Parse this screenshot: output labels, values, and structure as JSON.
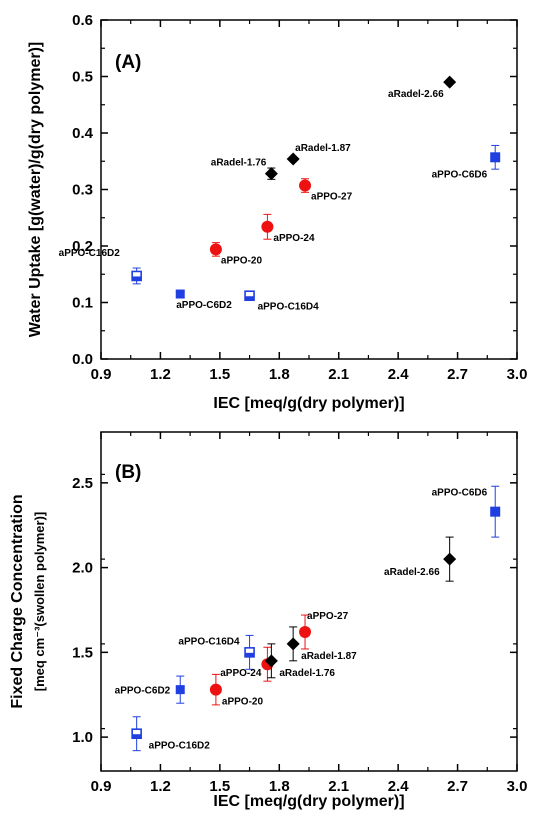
{
  "chart_data": [
    {
      "panel_label": "(A)",
      "type": "scatter",
      "xlabel": "IEC  [meq/g(dry polymer)]",
      "ylabel": "Water Uptake  [g(water)/g(dry polymer)]",
      "xlim": [
        0.9,
        3.0
      ],
      "ylim": [
        0.0,
        0.6
      ],
      "x_ticks": [
        "0.9",
        "1.2",
        "1.5",
        "1.8",
        "2.1",
        "2.4",
        "2.7",
        "3.0"
      ],
      "y_ticks": [
        "0.0",
        "0.1",
        "0.2",
        "0.3",
        "0.4",
        "0.5",
        "0.6"
      ],
      "grid": false,
      "points": [
        {
          "label": "aPPO-C16D2",
          "x": 1.08,
          "y": 0.147,
          "err": 0.014,
          "marker": "square-open",
          "color": "#1f3fe0"
        },
        {
          "label": "aPPO-C6D2",
          "x": 1.3,
          "y": 0.115,
          "err": 0.0,
          "marker": "square",
          "color": "#1f3fe0"
        },
        {
          "label": "aPPO-20",
          "x": 1.48,
          "y": 0.194,
          "err": 0.012,
          "marker": "circle",
          "color": "#ee1111"
        },
        {
          "label": "aPPO-C16D4",
          "x": 1.65,
          "y": 0.112,
          "err": 0.005,
          "marker": "square-open",
          "color": "#1f3fe0"
        },
        {
          "label": "aPPO-24",
          "x": 1.74,
          "y": 0.234,
          "err": 0.022,
          "marker": "circle",
          "color": "#ee1111"
        },
        {
          "label": "aRadel-1.76",
          "x": 1.76,
          "y": 0.328,
          "err": 0.01,
          "marker": "diamond",
          "color": "#000000"
        },
        {
          "label": "aRadel-1.87",
          "x": 1.87,
          "y": 0.354,
          "err": 0.0,
          "marker": "diamond",
          "color": "#000000"
        },
        {
          "label": "aPPO-27",
          "x": 1.93,
          "y": 0.307,
          "err": 0.012,
          "marker": "circle",
          "color": "#ee1111"
        },
        {
          "label": "aRadel-2.66",
          "x": 2.66,
          "y": 0.49,
          "err": 0.0,
          "marker": "diamond",
          "color": "#000000"
        },
        {
          "label": "aPPO-C6D6",
          "x": 2.89,
          "y": 0.357,
          "err": 0.021,
          "marker": "square-half",
          "color": "#1f3fe0"
        }
      ]
    },
    {
      "panel_label": "(B)",
      "type": "scatter",
      "xlabel": "IEC  [meq/g(dry polymer)]",
      "ylabel_line1": "Fixed Charge Concentration",
      "ylabel_line2": "[meq cm⁻³(swollen polymer)]",
      "xlim": [
        0.9,
        3.0
      ],
      "ylim": [
        0.8,
        2.8
      ],
      "x_ticks": [
        "0.9",
        "1.2",
        "1.5",
        "1.8",
        "2.1",
        "2.4",
        "2.7",
        "3.0"
      ],
      "y_ticks": [
        "1.0",
        "1.5",
        "2.0",
        "2.5"
      ],
      "grid": false,
      "points": [
        {
          "label": "aPPO-C16D2",
          "x": 1.08,
          "y": 1.02,
          "err": 0.1,
          "marker": "square-open",
          "color": "#1f3fe0"
        },
        {
          "label": "aPPO-C6D2",
          "x": 1.3,
          "y": 1.28,
          "err": 0.08,
          "marker": "square",
          "color": "#1f3fe0"
        },
        {
          "label": "aPPO-20",
          "x": 1.48,
          "y": 1.28,
          "err": 0.09,
          "marker": "circle",
          "color": "#ee1111"
        },
        {
          "label": "aPPO-C16D4",
          "x": 1.65,
          "y": 1.5,
          "err": 0.1,
          "marker": "square-open",
          "color": "#1f3fe0"
        },
        {
          "label": "aPPO-24",
          "x": 1.74,
          "y": 1.43,
          "err": 0.1,
          "marker": "circle",
          "color": "#ee1111"
        },
        {
          "label": "aRadel-1.76",
          "x": 1.76,
          "y": 1.45,
          "err": 0.1,
          "marker": "diamond",
          "color": "#000000"
        },
        {
          "label": "aRadel-1.87",
          "x": 1.87,
          "y": 1.55,
          "err": 0.1,
          "marker": "diamond",
          "color": "#000000"
        },
        {
          "label": "aPPO-27",
          "x": 1.93,
          "y": 1.62,
          "err": 0.1,
          "marker": "circle",
          "color": "#ee1111"
        },
        {
          "label": "aRadel-2.66",
          "x": 2.66,
          "y": 2.05,
          "err": 0.13,
          "marker": "diamond",
          "color": "#000000"
        },
        {
          "label": "aPPO-C6D6",
          "x": 2.89,
          "y": 2.33,
          "err": 0.15,
          "marker": "square-half",
          "color": "#1f3fe0"
        }
      ]
    }
  ]
}
